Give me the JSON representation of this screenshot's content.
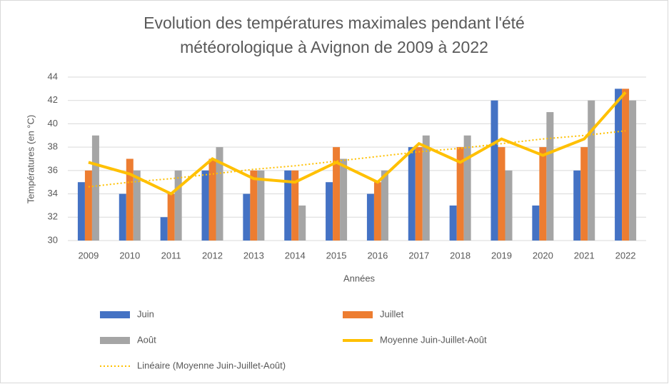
{
  "chart_data": {
    "type": "bar",
    "title": [
      "Evolution des températures maximales pendant l'été",
      "météorologique à Avignon de 2009 à 2022"
    ],
    "x_label": "Années",
    "y_label": "Températures (en °C)",
    "categories": [
      "2009",
      "2010",
      "2011",
      "2012",
      "2013",
      "2014",
      "2015",
      "2016",
      "2017",
      "2018",
      "2019",
      "2020",
      "2021",
      "2022"
    ],
    "series": [
      {
        "name": "Juin",
        "type": "bar",
        "color": "#4472c4",
        "values": [
          35,
          34,
          32,
          36,
          34,
          36,
          35,
          34,
          38,
          33,
          42,
          33,
          36,
          43
        ]
      },
      {
        "name": "Juillet",
        "type": "bar",
        "color": "#ed7d31",
        "values": [
          36,
          37,
          34,
          37,
          36,
          36,
          38,
          35,
          38,
          38,
          38,
          38,
          38,
          43
        ]
      },
      {
        "name": "Août",
        "type": "bar",
        "color": "#a5a5a5",
        "values": [
          39,
          36,
          36,
          38,
          36,
          33,
          37,
          36,
          39,
          39,
          36,
          41,
          42,
          42
        ]
      },
      {
        "name": "Moyenne Juin-Juillet-Août",
        "type": "line",
        "color": "#ffc000",
        "values": [
          36.7,
          35.7,
          34.0,
          37.0,
          35.3,
          35.0,
          36.7,
          35.0,
          38.3,
          36.7,
          38.7,
          37.3,
          38.7,
          42.7
        ]
      },
      {
        "name": "Linéaire (Moyenne Juin-Juillet-Août)",
        "type": "trendline",
        "color": "#ffc000",
        "values": [
          34.6,
          35.0,
          35.3,
          35.7,
          36.1,
          36.4,
          36.8,
          37.2,
          37.6,
          37.9,
          38.3,
          38.7,
          39.0,
          39.4
        ]
      }
    ],
    "ylim": [
      30,
      44
    ],
    "yticks": [
      30,
      32,
      34,
      36,
      38,
      40,
      42,
      44
    ],
    "grid": true,
    "legend": "bottom"
  }
}
